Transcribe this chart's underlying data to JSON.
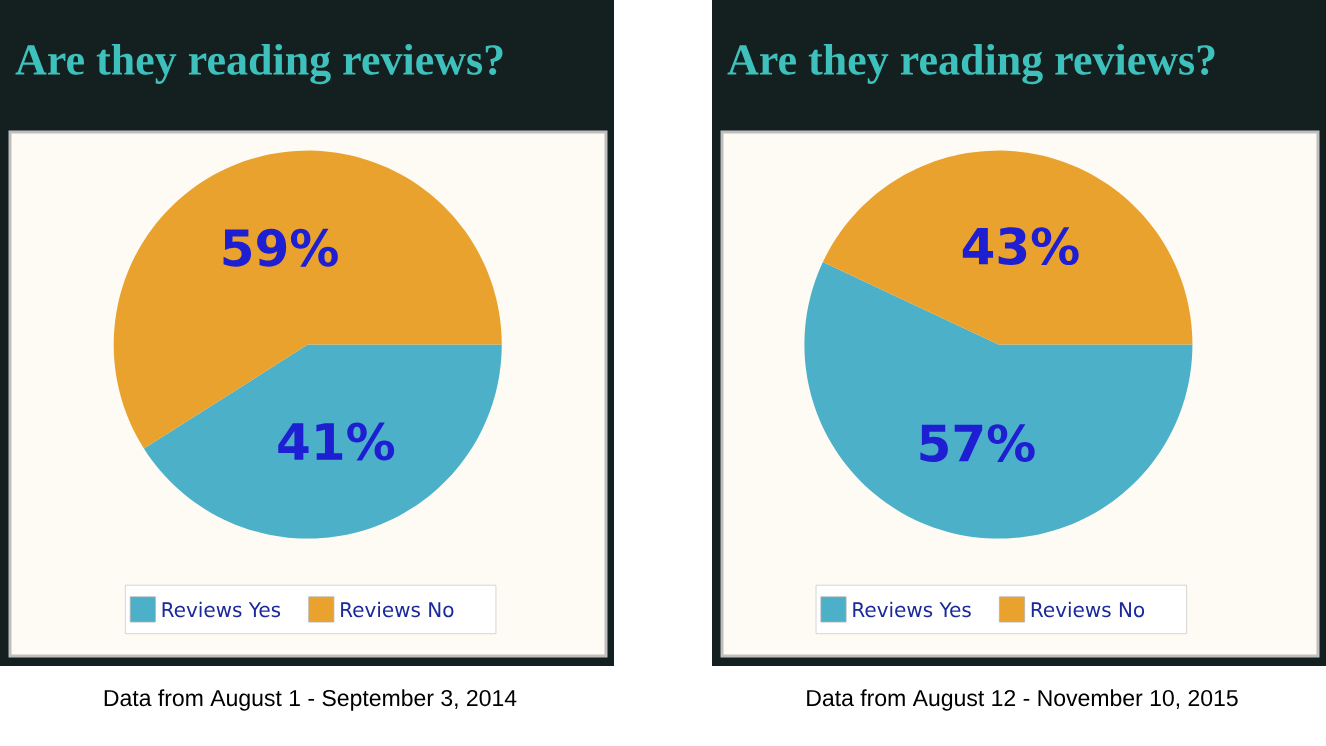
{
  "chart_data": [
    {
      "type": "pie",
      "title": "Are they reading reviews?",
      "categories": [
        "Reviews Yes",
        "Reviews No"
      ],
      "values": [
        41,
        59
      ],
      "colors": [
        "#4bb0c8",
        "#e9a22d"
      ],
      "value_labels": [
        "41%",
        "59%"
      ],
      "legend": "bottom",
      "annotations": [
        "Data from August 1 - September 3, 2014"
      ]
    },
    {
      "type": "pie",
      "title": "Are they reading reviews?",
      "categories": [
        "Reviews Yes",
        "Reviews No"
      ],
      "values": [
        57,
        43
      ],
      "colors": [
        "#4bb0c8",
        "#e9a22d"
      ],
      "value_labels": [
        "57%",
        "43%"
      ],
      "legend": "bottom",
      "annotations": [
        "Data from August 12 - November 10, 2015"
      ]
    }
  ]
}
